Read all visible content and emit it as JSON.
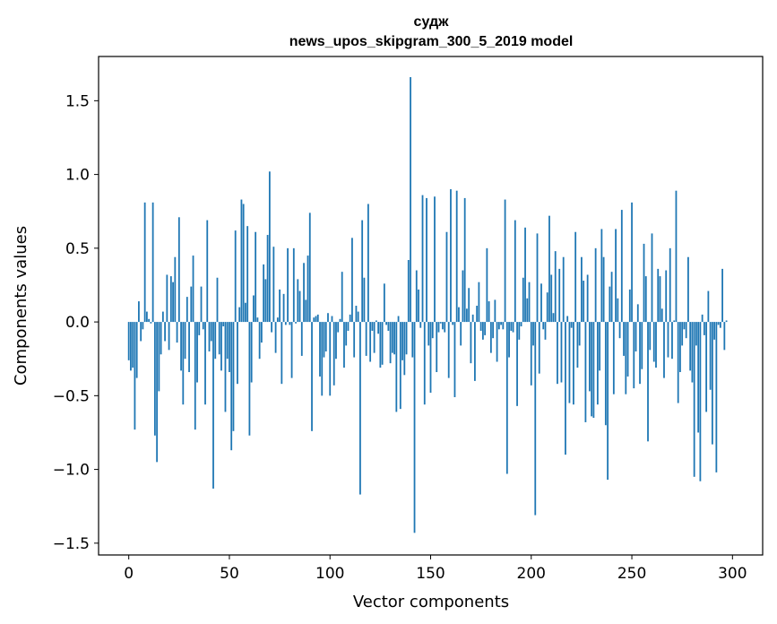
{
  "chart_data": {
    "type": "bar",
    "title_line1": "судж",
    "title_line2": "news_upos_skipgram_300_5_2019 model",
    "xlabel": "Vector components",
    "ylabel": "Components values",
    "xlim": [
      -15,
      315
    ],
    "ylim": [
      -1.58,
      1.8
    ],
    "xticks": [
      0,
      50,
      100,
      150,
      200,
      250,
      300
    ],
    "yticks": [
      -1.5,
      -1.0,
      -0.5,
      0.0,
      0.5,
      1.0,
      1.5
    ],
    "ytick_labels": [
      "−1.5",
      "−1.0",
      "−0.5",
      "0.0",
      "0.5",
      "1.0",
      "1.5"
    ],
    "color": "#1f77b4",
    "values": [
      -0.26,
      -0.33,
      -0.31,
      -0.73,
      -0.38,
      0.14,
      -0.13,
      -0.05,
      0.81,
      0.07,
      0.02,
      -0.01,
      0.81,
      -0.77,
      -0.95,
      -0.47,
      -0.22,
      0.07,
      -0.13,
      0.32,
      -0.19,
      0.31,
      0.27,
      0.44,
      -0.14,
      0.71,
      -0.33,
      -0.56,
      -0.25,
      0.17,
      -0.34,
      0.24,
      0.45,
      -0.73,
      -0.41,
      -0.09,
      0.24,
      -0.05,
      -0.56,
      0.69,
      -0.2,
      -0.13,
      -1.13,
      -0.25,
      0.3,
      -0.22,
      -0.33,
      -0.03,
      -0.61,
      -0.25,
      -0.34,
      -0.87,
      -0.74,
      0.62,
      -0.42,
      0.1,
      0.83,
      0.8,
      0.13,
      0.65,
      -0.77,
      -0.41,
      0.18,
      0.61,
      0.03,
      -0.25,
      -0.14,
      0.39,
      0.29,
      0.59,
      1.02,
      -0.07,
      0.51,
      -0.21,
      0.03,
      0.22,
      -0.42,
      0.19,
      -0.02,
      0.5,
      -0.02,
      -0.38,
      0.5,
      -0.01,
      0.29,
      0.21,
      -0.23,
      0.4,
      0.15,
      0.45,
      0.74,
      -0.74,
      0.03,
      0.04,
      0.05,
      -0.37,
      -0.5,
      -0.24,
      -0.2,
      0.06,
      -0.5,
      0.04,
      -0.43,
      -0.25,
      -0.07,
      0.02,
      0.34,
      -0.31,
      -0.16,
      -0.06,
      0.05,
      0.57,
      -0.24,
      0.11,
      0.07,
      -1.17,
      0.69,
      0.3,
      -0.23,
      0.8,
      -0.27,
      -0.06,
      -0.21,
      0.01,
      -0.08,
      -0.31,
      -0.29,
      0.26,
      -0.02,
      -0.06,
      -0.28,
      -0.21,
      -0.22,
      -0.61,
      0.04,
      -0.59,
      -0.26,
      -0.36,
      -0.22,
      0.42,
      1.66,
      -0.24,
      -1.43,
      0.35,
      0.22,
      -0.04,
      0.86,
      -0.56,
      0.84,
      -0.16,
      -0.48,
      -0.11,
      0.85,
      -0.34,
      -0.07,
      -0.01,
      -0.05,
      -0.07,
      0.61,
      -0.38,
      0.9,
      -0.02,
      -0.51,
      0.89,
      0.1,
      -0.16,
      0.35,
      0.84,
      0.09,
      0.23,
      -0.28,
      0.05,
      -0.4,
      0.11,
      0.27,
      -0.06,
      -0.12,
      -0.09,
      0.5,
      0.14,
      -0.21,
      -0.11,
      0.15,
      -0.27,
      -0.05,
      -0.02,
      -0.05,
      0.83,
      -1.03,
      -0.24,
      -0.06,
      -0.07,
      0.69,
      -0.57,
      -0.12,
      -0.03,
      0.3,
      0.64,
      0.16,
      0.27,
      -0.43,
      -0.16,
      -1.31,
      0.6,
      -0.35,
      0.26,
      -0.05,
      -0.12,
      0.2,
      0.72,
      0.32,
      0.06,
      0.48,
      -0.42,
      0.36,
      -0.41,
      0.44,
      -0.9,
      0.04,
      -0.55,
      -0.04,
      -0.56,
      0.61,
      -0.31,
      -0.16,
      0.44,
      0.28,
      -0.68,
      0.32,
      -0.47,
      -0.64,
      -0.65,
      0.5,
      -0.56,
      -0.33,
      0.63,
      0.44,
      -0.7,
      -1.07,
      0.24,
      0.34,
      -0.49,
      0.63,
      0.16,
      -0.11,
      0.76,
      -0.23,
      -0.49,
      -0.37,
      0.22,
      0.81,
      -0.45,
      -0.2,
      0.12,
      -0.42,
      -0.32,
      0.53,
      0.31,
      -0.81,
      -0.19,
      0.6,
      -0.27,
      -0.31,
      0.36,
      0.31,
      0.09,
      -0.38,
      0.35,
      -0.24,
      0.5,
      -0.25,
      0.01,
      0.89,
      -0.55,
      -0.34,
      -0.16,
      -0.05,
      -0.11,
      0.44,
      -0.33,
      -0.41,
      -1.05,
      -0.16,
      -0.75,
      -1.08,
      0.05,
      -0.09,
      -0.61,
      0.21,
      -0.46,
      -0.83,
      -0.12,
      -1.02,
      -0.02,
      -0.04,
      0.36,
      -0.19,
      0.01
    ]
  }
}
